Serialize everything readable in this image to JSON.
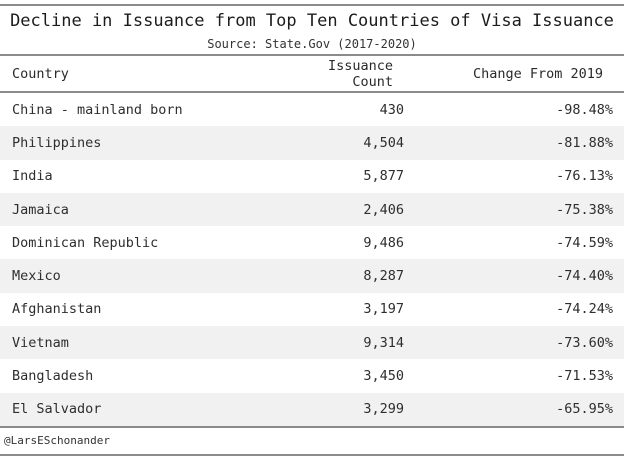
{
  "header": {
    "title": "Decline in Issuance from Top Ten Countries of Visa Issuance",
    "subtitle": "Source: State.Gov (2017-2020)"
  },
  "table": {
    "columns": [
      "Country",
      "Issuance Count",
      "Change From 2019"
    ],
    "cell_fields": [
      "country",
      "issuance_count",
      "change_from_2019"
    ],
    "cell_names": [
      "country-cell",
      "issuance-count-cell",
      "change-cell"
    ],
    "rows": [
      {
        "country": "China - mainland born",
        "issuance_count": "430",
        "change_from_2019": "-98.48%"
      },
      {
        "country": "Philippines",
        "issuance_count": "4,504",
        "change_from_2019": "-81.88%"
      },
      {
        "country": "India",
        "issuance_count": "5,877",
        "change_from_2019": "-76.13%"
      },
      {
        "country": "Jamaica",
        "issuance_count": "2,406",
        "change_from_2019": "-75.38%"
      },
      {
        "country": "Dominican Republic",
        "issuance_count": "9,486",
        "change_from_2019": "-74.59%"
      },
      {
        "country": "Mexico",
        "issuance_count": "8,287",
        "change_from_2019": "-74.40%"
      },
      {
        "country": "Afghanistan",
        "issuance_count": "3,197",
        "change_from_2019": "-74.24%"
      },
      {
        "country": "Vietnam",
        "issuance_count": "9,314",
        "change_from_2019": "-73.60%"
      },
      {
        "country": "Bangladesh",
        "issuance_count": "3,450",
        "change_from_2019": "-71.53%"
      },
      {
        "country": "El Salvador",
        "issuance_count": "3,299",
        "change_from_2019": "-65.95%"
      }
    ]
  },
  "footer": {
    "credit": "@LarsESchonander"
  },
  "colors": {
    "rule": "#8b8b8b",
    "stripe": "#f1f1f1",
    "text": "#2e2e2e"
  },
  "chart_data": {
    "type": "table",
    "title": "Decline in Issuance from Top Ten Countries of Visa Issuance",
    "subtitle": "Source: State.Gov (2017-2020)",
    "columns": [
      "Country",
      "Issuance Count",
      "Change From 2019"
    ],
    "rows": [
      [
        "China - mainland born",
        430,
        -98.48
      ],
      [
        "Philippines",
        4504,
        -81.88
      ],
      [
        "India",
        5877,
        -76.13
      ],
      [
        "Jamaica",
        2406,
        -75.38
      ],
      [
        "Dominican Republic",
        9486,
        -74.59
      ],
      [
        "Mexico",
        8287,
        -74.4
      ],
      [
        "Afghanistan",
        3197,
        -74.24
      ],
      [
        "Vietnam",
        9314,
        -73.6
      ],
      [
        "Bangladesh",
        3450,
        -71.53
      ],
      [
        "El Salvador",
        3299,
        -65.95
      ]
    ],
    "footnote": "@LarsESchonander",
    "layout": "striped rows, horizontal rules only, monospace font, numeric columns right-aligned"
  }
}
